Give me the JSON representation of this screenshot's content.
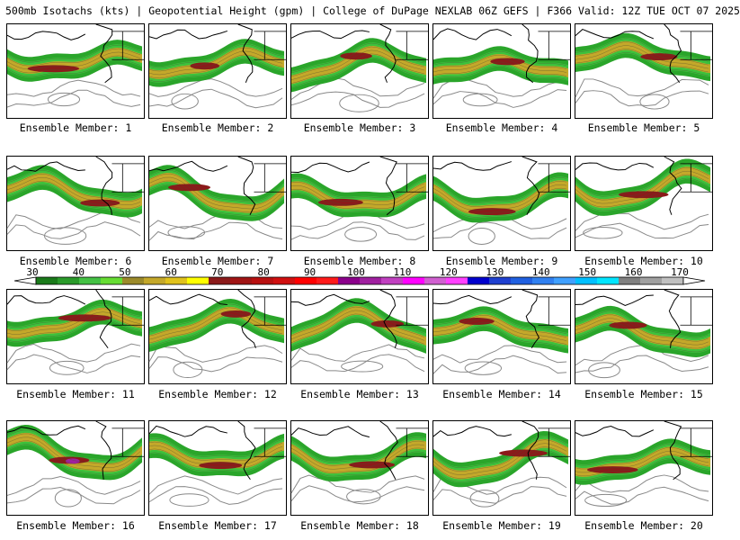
{
  "header": {
    "title": "500mb Isotachs (kts) | Geopotential Height (gpm) | College of DuPage NEXLAB   06Z GEFS | F366 Valid: 12Z TUE OCT 07 2025"
  },
  "members": [
    {
      "label": "Ensemble Member: 1"
    },
    {
      "label": "Ensemble Member: 2"
    },
    {
      "label": "Ensemble Member: 3"
    },
    {
      "label": "Ensemble Member: 4"
    },
    {
      "label": "Ensemble Member: 5"
    },
    {
      "label": "Ensemble Member: 6"
    },
    {
      "label": "Ensemble Member: 7"
    },
    {
      "label": "Ensemble Member: 8"
    },
    {
      "label": "Ensemble Member: 9"
    },
    {
      "label": "Ensemble Member: 10"
    },
    {
      "label": "Ensemble Member: 11"
    },
    {
      "label": "Ensemble Member: 12"
    },
    {
      "label": "Ensemble Member: 13"
    },
    {
      "label": "Ensemble Member: 14"
    },
    {
      "label": "Ensemble Member: 15"
    },
    {
      "label": "Ensemble Member: 16"
    },
    {
      "label": "Ensemble Member: 17"
    },
    {
      "label": "Ensemble Member: 18"
    },
    {
      "label": "Ensemble Member: 19"
    },
    {
      "label": "Ensemble Member: 20"
    }
  ],
  "colorbar": {
    "labels": [
      "30",
      "40",
      "50",
      "60",
      "70",
      "80",
      "90",
      "100",
      "110",
      "120",
      "130",
      "140",
      "150",
      "160",
      "170"
    ],
    "colors": [
      "#1a7a1a",
      "#2a9a2a",
      "#44c144",
      "#66dd33",
      "#9b8a2a",
      "#c4a82a",
      "#e0c21c",
      "#ffff00",
      "#8b1a1a",
      "#a01414",
      "#b81010",
      "#d01010",
      "#ff0000",
      "#ff1a1a",
      "#8b008b",
      "#a020a0",
      "#c040c0",
      "#ff00ff",
      "#d060d0",
      "#ff40ff",
      "#0000cd",
      "#1e40d0",
      "#2060e0",
      "#3080f0",
      "#40a0ff",
      "#00bfff",
      "#00e5ff",
      "#808080",
      "#a0a0a0",
      "#c0c0c0"
    ]
  }
}
